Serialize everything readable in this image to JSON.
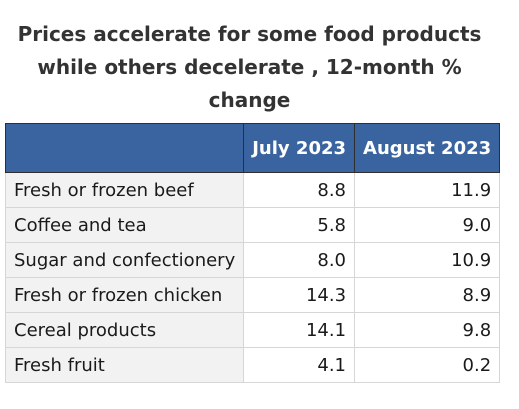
{
  "chart_data": {
    "type": "table",
    "title_lines": [
      "Prices accelerate for some food products",
      "while others decelerate , 12-month %",
      "change"
    ],
    "columns": [
      "",
      "July 2023",
      "August 2023"
    ],
    "rows": [
      {
        "label": "Fresh or frozen beef",
        "values": [
          "8.8",
          "11.9"
        ]
      },
      {
        "label": "Coffee and tea",
        "values": [
          "5.8",
          "9.0"
        ]
      },
      {
        "label": "Sugar and confectionery",
        "values": [
          "8.0",
          "10.9"
        ]
      },
      {
        "label": "Fresh or frozen chicken",
        "values": [
          "14.3",
          "8.9"
        ]
      },
      {
        "label": "Cereal products",
        "values": [
          "14.1",
          "9.8"
        ]
      },
      {
        "label": "Fresh fruit",
        "values": [
          "4.1",
          "0.2"
        ]
      }
    ],
    "colors": {
      "header_background": "#3a64a0",
      "header_text": "#ffffff",
      "label_cell_background": "#f2f2f2"
    }
  }
}
